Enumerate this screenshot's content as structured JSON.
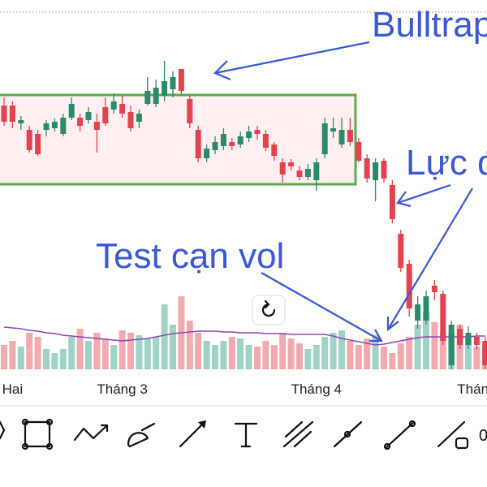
{
  "chart_data": {
    "type": "candlestick",
    "categories": [
      null,
      "Hai",
      null,
      null,
      null,
      null,
      null,
      null,
      null,
      null,
      null,
      null,
      null,
      null,
      "Tháng 3",
      null,
      null,
      null,
      null,
      null,
      null,
      null,
      null,
      null,
      null,
      null,
      null,
      null,
      null,
      null,
      null,
      null,
      null,
      null,
      null,
      null,
      null,
      "Tháng 4",
      null,
      null,
      null,
      null,
      null,
      null,
      null,
      null,
      null,
      null,
      null,
      null,
      null,
      null,
      null,
      null,
      null,
      null,
      "Tháng",
      null
    ],
    "candles": [
      {
        "open": 330,
        "close": 310,
        "high": 340,
        "low": 305
      },
      {
        "open": 330,
        "close": 310,
        "high": 335,
        "low": 302
      },
      {
        "open": 308,
        "close": 312,
        "high": 317,
        "low": 300
      },
      {
        "open": 300,
        "close": 275,
        "high": 305,
        "low": 272
      },
      {
        "open": 295,
        "close": 270,
        "high": 300,
        "low": 268
      },
      {
        "open": 300,
        "close": 308,
        "high": 312,
        "low": 292
      },
      {
        "open": 302,
        "close": 310,
        "high": 314,
        "low": 298
      },
      {
        "open": 295,
        "close": 315,
        "high": 320,
        "low": 292
      },
      {
        "open": 315,
        "close": 332,
        "high": 340,
        "low": 312
      },
      {
        "open": 315,
        "close": 305,
        "high": 320,
        "low": 298
      },
      {
        "open": 312,
        "close": 322,
        "high": 328,
        "low": 308
      },
      {
        "open": 310,
        "close": 300,
        "high": 320,
        "low": 272
      },
      {
        "open": 328,
        "close": 308,
        "high": 340,
        "low": 305
      },
      {
        "open": 325,
        "close": 335,
        "high": 345,
        "low": 320
      },
      {
        "open": 332,
        "close": 320,
        "high": 342,
        "low": 315
      },
      {
        "open": 322,
        "close": 302,
        "high": 330,
        "low": 298
      },
      {
        "open": 310,
        "close": 320,
        "high": 325,
        "low": 302
      },
      {
        "open": 332,
        "close": 348,
        "high": 365,
        "low": 330
      },
      {
        "open": 332,
        "close": 352,
        "high": 362,
        "low": 328
      },
      {
        "open": 342,
        "close": 360,
        "high": 385,
        "low": 335
      },
      {
        "open": 350,
        "close": 365,
        "high": 372,
        "low": 340
      },
      {
        "open": 375,
        "close": 348,
        "high": 375,
        "low": 342
      },
      {
        "open": 338,
        "close": 308,
        "high": 342,
        "low": 302
      },
      {
        "open": 300,
        "close": 265,
        "high": 305,
        "low": 260
      },
      {
        "open": 265,
        "close": 277,
        "high": 282,
        "low": 260
      },
      {
        "open": 275,
        "close": 285,
        "high": 292,
        "low": 270
      },
      {
        "open": 280,
        "close": 295,
        "high": 302,
        "low": 275
      },
      {
        "open": 285,
        "close": 280,
        "high": 290,
        "low": 275
      },
      {
        "open": 282,
        "close": 292,
        "high": 298,
        "low": 278
      },
      {
        "open": 290,
        "close": 298,
        "high": 305,
        "low": 285
      },
      {
        "open": 300,
        "close": 295,
        "high": 305,
        "low": 288
      },
      {
        "open": 295,
        "close": 278,
        "high": 300,
        "low": 274
      },
      {
        "open": 282,
        "close": 268,
        "high": 285,
        "low": 262
      },
      {
        "open": 260,
        "close": 245,
        "high": 265,
        "low": 235
      },
      {
        "open": 260,
        "close": 255,
        "high": 264,
        "low": 250
      },
      {
        "open": 250,
        "close": 242,
        "high": 255,
        "low": 238
      },
      {
        "open": 242,
        "close": 252,
        "high": 258,
        "low": 238
      },
      {
        "open": 238,
        "close": 260,
        "high": 265,
        "low": 225
      },
      {
        "open": 270,
        "close": 308,
        "high": 315,
        "low": 265
      },
      {
        "open": 298,
        "close": 302,
        "high": 315,
        "low": 290
      },
      {
        "open": 282,
        "close": 300,
        "high": 315,
        "low": 278
      },
      {
        "open": 300,
        "close": 285,
        "high": 315,
        "low": 280
      },
      {
        "open": 285,
        "close": 262,
        "high": 290,
        "low": 260
      },
      {
        "open": 265,
        "close": 240,
        "high": 270,
        "low": 235
      },
      {
        "open": 238,
        "close": 260,
        "high": 265,
        "low": 212
      },
      {
        "open": 262,
        "close": 240,
        "high": 265,
        "low": 235
      },
      {
        "open": 232,
        "close": 190,
        "high": 238,
        "low": 185
      },
      {
        "open": 172,
        "close": 130,
        "high": 177,
        "low": 125
      },
      {
        "open": 135,
        "close": 80,
        "high": 140,
        "low": 70
      },
      {
        "open": 65,
        "close": 85,
        "high": 95,
        "low": 55
      },
      {
        "open": 65,
        "close": 95,
        "high": 102,
        "low": 60
      },
      {
        "open": 108,
        "close": 100,
        "high": 115,
        "low": 90
      },
      {
        "open": 98,
        "close": 40,
        "high": 102,
        "low": 35
      },
      {
        "open": 10,
        "close": 60,
        "high": 65,
        "low": 5
      },
      {
        "open": 55,
        "close": 35,
        "high": 60,
        "low": 30
      },
      {
        "open": 35,
        "close": 50,
        "high": 58,
        "low": 30
      },
      {
        "open": 45,
        "close": 35,
        "high": 50,
        "low": 30
      },
      {
        "open": 40,
        "close": 10,
        "high": 45,
        "low": 5
      }
    ],
    "volume": [
      30,
      35,
      28,
      45,
      40,
      25,
      20,
      25,
      40,
      50,
      35,
      45,
      38,
      30,
      48,
      45,
      42,
      38,
      40,
      80,
      55,
      90,
      60,
      45,
      35,
      30,
      35,
      40,
      38,
      30,
      28,
      35,
      30,
      45,
      38,
      32,
      25,
      30,
      40,
      45,
      48,
      35,
      30,
      38,
      42,
      28,
      20,
      32,
      40,
      55,
      70,
      58,
      45,
      45,
      55,
      40,
      28,
      30
    ],
    "volume_ma": [
      52,
      51,
      50,
      48,
      47,
      45,
      44,
      42,
      41,
      40,
      39,
      38,
      37,
      36,
      35,
      36,
      37,
      38,
      40,
      42,
      44,
      45,
      46,
      47,
      47,
      47,
      46,
      46,
      45,
      45,
      45,
      44,
      44,
      44,
      43,
      43,
      43,
      43,
      43,
      41,
      38,
      36,
      34,
      32,
      30,
      31,
      33,
      35,
      37,
      39,
      40,
      40,
      40,
      40,
      40,
      40,
      41,
      41
    ],
    "ylim": [
      0,
      460
    ],
    "volume_lim": [
      0,
      100
    ],
    "up_color": "#2a8b6c",
    "down_color": "#e2434f",
    "volume_up_color": "#9fd3c5",
    "volume_down_color": "#f2aab0",
    "ma_color": "#9145b5",
    "annotations": {
      "bulltrap": "Bulltrap",
      "luc": "Lực đ",
      "test": "Test cạn vol"
    }
  },
  "toolbar": {
    "partial_label": "0"
  }
}
